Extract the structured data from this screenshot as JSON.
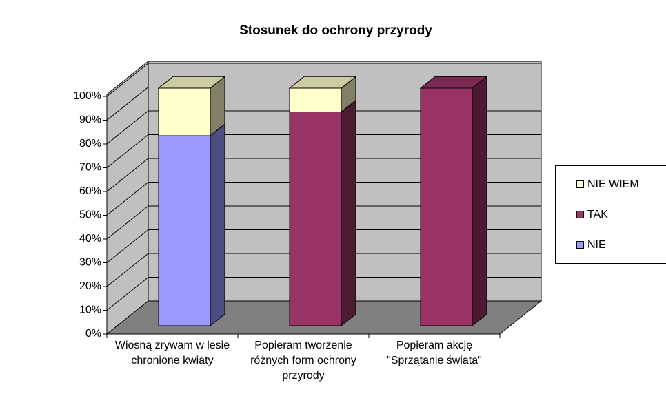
{
  "chart_data": {
    "type": "bar3d_stacked",
    "title": "Stosunek do ochrony przyrody",
    "categories": [
      "Wiosną zrywam w lesie chronione kwiaty",
      "Popieram tworzenie różnych form ochrony przyrody",
      "Popieram akcję \"Sprzątanie świata\""
    ],
    "series": [
      {
        "name": "NIE",
        "color": "#9999ff",
        "values": [
          80,
          0,
          0
        ]
      },
      {
        "name": "TAK",
        "color": "#993366",
        "values": [
          0,
          90,
          100
        ]
      },
      {
        "name": "NIE WIEM",
        "color": "#ffffcc",
        "values": [
          20,
          10,
          0
        ]
      }
    ],
    "ylim": [
      0,
      100
    ],
    "yticks": [
      {
        "value": 0,
        "label": "0%"
      },
      {
        "value": 10,
        "label": "10%"
      },
      {
        "value": 20,
        "label": "20%"
      },
      {
        "value": 30,
        "label": "30%"
      },
      {
        "value": 40,
        "label": "40%"
      },
      {
        "value": 50,
        "label": "50%"
      },
      {
        "value": 60,
        "label": "60%"
      },
      {
        "value": 70,
        "label": "70%"
      },
      {
        "value": 80,
        "label": "80%"
      },
      {
        "value": 90,
        "label": "90%"
      },
      {
        "value": 100,
        "label": "100%"
      }
    ],
    "grid": true,
    "legend": "right"
  }
}
